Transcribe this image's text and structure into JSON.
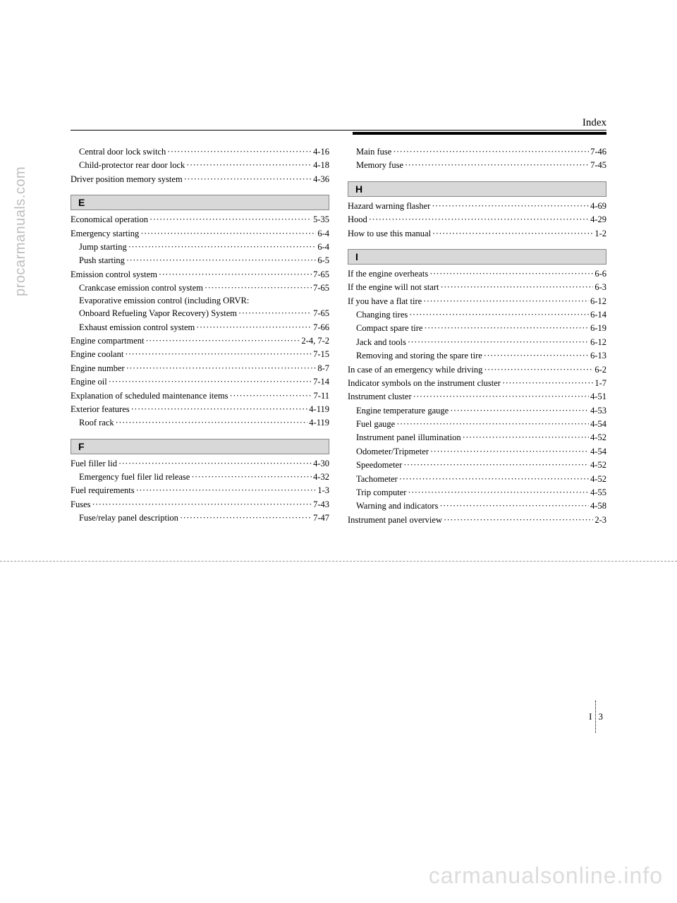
{
  "watermarks": {
    "left": "procarmanuals.com",
    "bottom": "carmanualsonline.info"
  },
  "header": {
    "title": "Index"
  },
  "footer": {
    "section": "I",
    "page": "3"
  },
  "left_col": {
    "top_entries": [
      {
        "label": "Central door lock switch",
        "page": "4-16",
        "indent": 1
      },
      {
        "label": "Child-protector rear door lock",
        "page": "4-18",
        "indent": 1
      },
      {
        "label": "Driver position memory system",
        "page": "4-36",
        "indent": 0
      }
    ],
    "sections": [
      {
        "letter": "E",
        "entries": [
          {
            "label": "Economical operation",
            "page": "5-35",
            "indent": 0
          },
          {
            "label": "Emergency starting",
            "page": "6-4",
            "indent": 0
          },
          {
            "label": "Jump starting",
            "page": "6-4",
            "indent": 1
          },
          {
            "label": "Push starting",
            "page": "6-5",
            "indent": 1
          },
          {
            "label": "Emission control system",
            "page": "7-65",
            "indent": 0
          },
          {
            "label": "Crankcase emission control system",
            "page": "7-65",
            "indent": 1
          },
          {
            "label": "Evaporative emission control (including ORVR: Onboard Refueling Vapor Recovery) System",
            "page": "7-65",
            "indent": 1,
            "wrap": true
          },
          {
            "label": "Exhaust emission control system",
            "page": "7-66",
            "indent": 1
          },
          {
            "label": "Engine compartment",
            "page": "2-4, 7-2",
            "indent": 0
          },
          {
            "label": "Engine coolant",
            "page": "7-15",
            "indent": 0
          },
          {
            "label": "Engine number",
            "page": "8-7",
            "indent": 0
          },
          {
            "label": "Engine oil",
            "page": "7-14",
            "indent": 0
          },
          {
            "label": "Explanation of scheduled maintenance items",
            "page": "7-11",
            "indent": 0
          },
          {
            "label": "Exterior features",
            "page": "4-119",
            "indent": 0
          },
          {
            "label": "Roof rack",
            "page": "4-119",
            "indent": 1
          }
        ]
      },
      {
        "letter": "F",
        "entries": [
          {
            "label": "Fuel filler lid",
            "page": "4-30",
            "indent": 0
          },
          {
            "label": "Emergency fuel filer lid release",
            "page": "4-32",
            "indent": 1
          },
          {
            "label": "Fuel requirements",
            "page": "1-3",
            "indent": 0
          },
          {
            "label": "Fuses",
            "page": "7-43",
            "indent": 0
          },
          {
            "label": "Fuse/relay panel description",
            "page": "7-47",
            "indent": 1
          }
        ]
      }
    ]
  },
  "right_col": {
    "top_entries": [
      {
        "label": "Main fuse",
        "page": "7-46",
        "indent": 1
      },
      {
        "label": "Memory fuse",
        "page": "7-45",
        "indent": 1
      }
    ],
    "sections": [
      {
        "letter": "H",
        "entries": [
          {
            "label": "Hazard warning flasher",
            "page": "4-69",
            "indent": 0
          },
          {
            "label": "Hood",
            "page": "4-29",
            "indent": 0
          },
          {
            "label": "How to use this manual",
            "page": "1-2",
            "indent": 0
          }
        ]
      },
      {
        "letter": "I",
        "entries": [
          {
            "label": "If the engine overheats",
            "page": "6-6",
            "indent": 0
          },
          {
            "label": "If the engine will not start",
            "page": "6-3",
            "indent": 0
          },
          {
            "label": "If you have a flat tire",
            "page": "6-12",
            "indent": 0
          },
          {
            "label": "Changing tires",
            "page": "6-14",
            "indent": 1
          },
          {
            "label": "Compact spare tire",
            "page": "6-19",
            "indent": 1
          },
          {
            "label": "Jack and tools",
            "page": "6-12",
            "indent": 1
          },
          {
            "label": "Removing and storing the spare tire",
            "page": "6-13",
            "indent": 1
          },
          {
            "label": "In case of an emergency while driving",
            "page": "6-2",
            "indent": 0
          },
          {
            "label": "Indicator symbols on the instrument cluster",
            "page": "1-7",
            "indent": 0
          },
          {
            "label": "Instrument cluster",
            "page": "4-51",
            "indent": 0
          },
          {
            "label": "Engine temperature gauge",
            "page": "4-53",
            "indent": 1
          },
          {
            "label": "Fuel gauge",
            "page": "4-54",
            "indent": 1
          },
          {
            "label": "Instrument panel illumination",
            "page": "4-52",
            "indent": 1
          },
          {
            "label": "Odometer/Tripmeter",
            "page": "4-54",
            "indent": 1
          },
          {
            "label": "Speedometer",
            "page": "4-52",
            "indent": 1
          },
          {
            "label": "Tachometer",
            "page": "4-52",
            "indent": 1
          },
          {
            "label": "Trip computer",
            "page": "4-55",
            "indent": 1
          },
          {
            "label": "Warning and indicators",
            "page": "4-58",
            "indent": 1
          },
          {
            "label": "Instrument panel overview",
            "page": "2-3",
            "indent": 0
          }
        ]
      }
    ]
  }
}
